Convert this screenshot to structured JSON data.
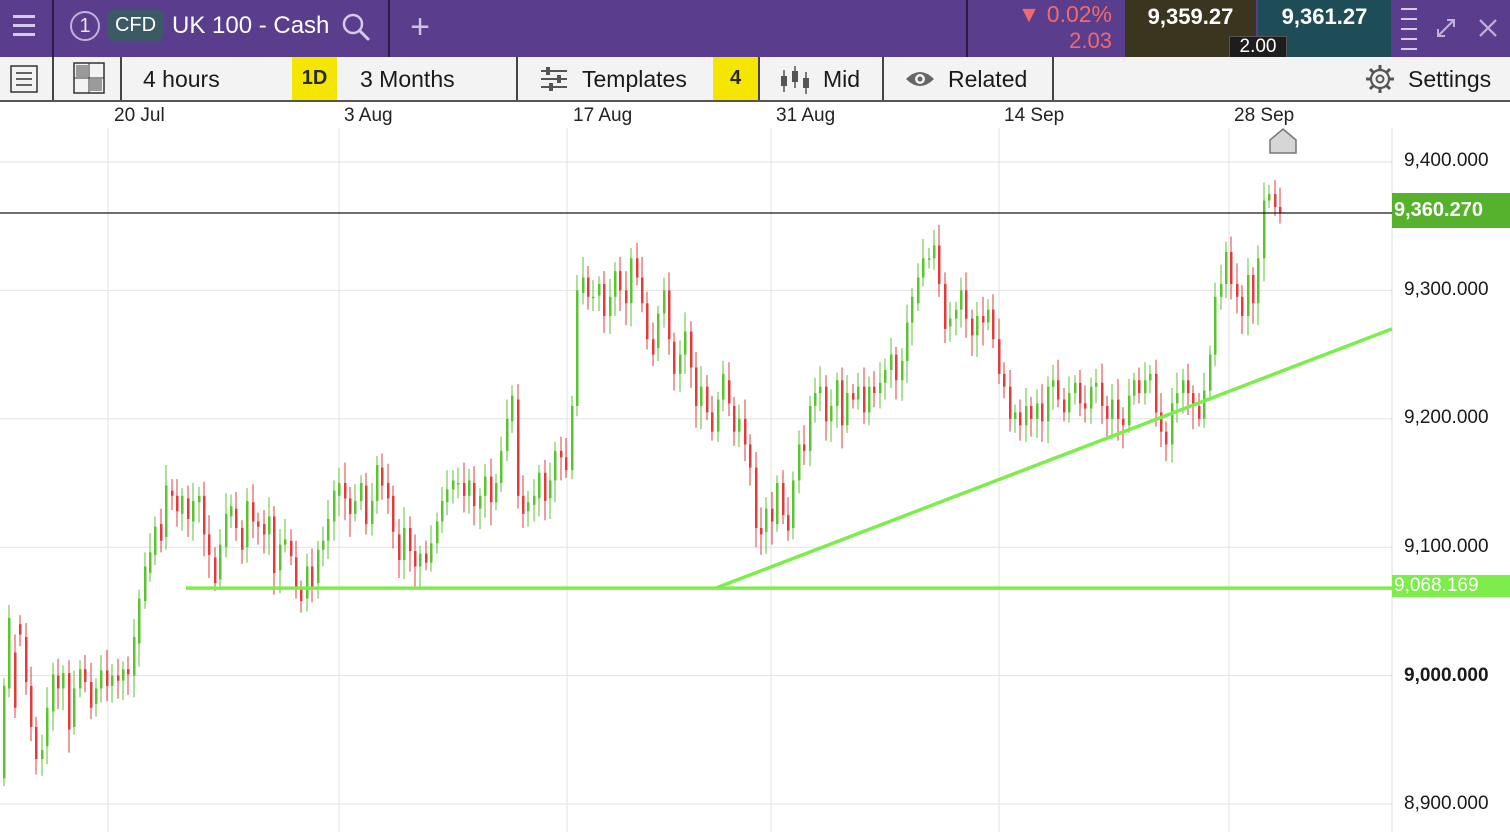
{
  "header": {
    "tab_number": "1",
    "cfd_badge": "CFD",
    "instrument": "UK 100 - Cash",
    "add_tab": "+",
    "change_arrow": "▼",
    "change_percent": "0.02%",
    "change_points": "2.03",
    "sell_price": "9,359.27",
    "buy_price": "9,361.27",
    "spread": "2.00"
  },
  "toolbar": {
    "interval": "4 hours",
    "period_badge": "1D",
    "range": "3 Months",
    "templates": "Templates",
    "templates_count": "4",
    "price_type": "Mid",
    "related": "Related",
    "settings": "Settings"
  },
  "colors": {
    "header_bg": "#5a3d8c",
    "up": "#5ac531",
    "down": "#e23b3b",
    "line": "#7ded4c",
    "price_tag": "#56b22d"
  },
  "chart_data": {
    "type": "candlestick",
    "x_ticks": [
      "20 Jul",
      "3 Aug",
      "17 Aug",
      "31 Aug",
      "14 Sep",
      "28 Sep"
    ],
    "y_ticks": [
      "9,400.000",
      "9,300.000",
      "9,200.000",
      "9,100.000",
      "9,000.000",
      "8,900.000"
    ],
    "ylim": [
      8880,
      9453
    ],
    "current_price": 9360.27,
    "current_price_label": "9,360.270",
    "support_level": 9068.169,
    "support_label": "9,068.169",
    "trendline_rising": [
      [
        9068.2,
        9270.0
      ]
    ],
    "candles": [
      [
        8920,
        8992
      ],
      [
        8990,
        9045
      ],
      [
        9018,
        8975
      ],
      [
        9040,
        9032
      ],
      [
        9030,
        8995
      ],
      [
        8992,
        8960
      ],
      [
        8960,
        8935
      ],
      [
        8935,
        8942
      ],
      [
        8945,
        8975
      ],
      [
        8972,
        9001
      ],
      [
        9000,
        8990
      ],
      [
        8990,
        9002
      ],
      [
        9002,
        8958
      ],
      [
        8960,
        8990
      ],
      [
        8990,
        9005
      ],
      [
        9005,
        8995
      ],
      [
        8995,
        8975
      ],
      [
        8978,
        8990
      ],
      [
        8990,
        9004
      ],
      [
        9004,
        8992
      ],
      [
        8992,
        9000
      ],
      [
        9000,
        8996
      ],
      [
        8996,
        9005
      ],
      [
        9005,
        9001
      ],
      [
        9000,
        9030
      ],
      [
        9025,
        9060
      ],
      [
        9058,
        9085
      ],
      [
        9080,
        9096
      ],
      [
        9094,
        9116
      ],
      [
        9118,
        9105
      ],
      [
        9108,
        9148
      ],
      [
        9144,
        9140
      ],
      [
        9140,
        9128
      ],
      [
        9126,
        9140
      ],
      [
        9138,
        9122
      ],
      [
        9120,
        9136
      ],
      [
        9135,
        9140
      ],
      [
        9140,
        9110
      ],
      [
        9110,
        9094
      ],
      [
        9092,
        9072
      ],
      [
        9075,
        9102
      ],
      [
        9100,
        9126
      ],
      [
        9124,
        9132
      ],
      [
        9130,
        9115
      ],
      [
        9115,
        9098
      ],
      [
        9100,
        9136
      ],
      [
        9135,
        9120
      ],
      [
        9120,
        9116
      ],
      [
        9118,
        9110
      ],
      [
        9110,
        9124
      ],
      [
        9124,
        9080
      ],
      [
        9082,
        9102
      ],
      [
        9102,
        9106
      ],
      [
        9105,
        9093
      ],
      [
        9092,
        9068
      ],
      [
        9068,
        9058
      ],
      [
        9060,
        9085
      ],
      [
        9085,
        9068
      ],
      [
        9072,
        9098
      ],
      [
        9098,
        9105
      ],
      [
        9105,
        9122
      ],
      [
        9120,
        9144
      ],
      [
        9140,
        9150
      ],
      [
        9150,
        9138
      ],
      [
        9138,
        9126
      ],
      [
        9126,
        9136
      ],
      [
        9136,
        9150
      ],
      [
        9148,
        9118
      ],
      [
        9118,
        9136
      ],
      [
        9136,
        9164
      ],
      [
        9162,
        9148
      ],
      [
        9150,
        9138
      ],
      [
        9140,
        9112
      ],
      [
        9110,
        9090
      ],
      [
        9090,
        9115
      ],
      [
        9115,
        9097
      ],
      [
        9097,
        9085
      ],
      [
        9085,
        9095
      ],
      [
        9095,
        9088
      ],
      [
        9088,
        9103
      ],
      [
        9103,
        9120
      ],
      [
        9120,
        9136
      ],
      [
        9135,
        9145
      ],
      [
        9145,
        9152
      ],
      [
        9150,
        9150
      ],
      [
        9150,
        9140
      ],
      [
        9140,
        9152
      ],
      [
        9150,
        9132
      ],
      [
        9130,
        9140
      ],
      [
        9140,
        9155
      ],
      [
        9155,
        9135
      ],
      [
        9135,
        9150
      ],
      [
        9150,
        9175
      ],
      [
        9175,
        9200
      ],
      [
        9198,
        9218
      ],
      [
        9215,
        9140
      ],
      [
        9140,
        9126
      ],
      [
        9128,
        9135
      ],
      [
        9133,
        9140
      ],
      [
        9138,
        9158
      ],
      [
        9158,
        9136
      ],
      [
        9138,
        9152
      ],
      [
        9152,
        9175
      ],
      [
        9175,
        9170
      ],
      [
        9170,
        9160
      ],
      [
        9160,
        9210
      ],
      [
        9210,
        9300
      ],
      [
        9298,
        9310
      ],
      [
        9310,
        9295
      ],
      [
        9295,
        9295
      ],
      [
        9296,
        9305
      ],
      [
        9305,
        9280
      ],
      [
        9280,
        9295
      ],
      [
        9295,
        9315
      ],
      [
        9315,
        9300
      ],
      [
        9300,
        9290
      ],
      [
        9290,
        9325
      ],
      [
        9325,
        9310
      ],
      [
        9310,
        9290
      ],
      [
        9290,
        9262
      ],
      [
        9262,
        9250
      ],
      [
        9255,
        9282
      ],
      [
        9282,
        9300
      ],
      [
        9300,
        9262
      ],
      [
        9260,
        9235
      ],
      [
        9235,
        9250
      ],
      [
        9250,
        9268
      ],
      [
        9268,
        9240
      ],
      [
        9240,
        9210
      ],
      [
        9210,
        9225
      ],
      [
        9225,
        9205
      ],
      [
        9205,
        9190
      ],
      [
        9190,
        9215
      ],
      [
        9215,
        9235
      ],
      [
        9230,
        9212
      ],
      [
        9210,
        9190
      ],
      [
        9190,
        9200
      ],
      [
        9200,
        9180
      ],
      [
        9180,
        9162
      ],
      [
        9162,
        9115
      ],
      [
        9115,
        9110
      ],
      [
        9112,
        9130
      ],
      [
        9130,
        9120
      ],
      [
        9118,
        9150
      ],
      [
        9150,
        9125
      ],
      [
        9125,
        9113
      ],
      [
        9115,
        9152
      ],
      [
        9152,
        9180
      ],
      [
        9180,
        9175
      ],
      [
        9175,
        9210
      ],
      [
        9210,
        9220
      ],
      [
        9220,
        9225
      ],
      [
        9225,
        9198
      ],
      [
        9198,
        9210
      ],
      [
        9210,
        9230
      ],
      [
        9230,
        9195
      ],
      [
        9195,
        9220
      ],
      [
        9220,
        9215
      ],
      [
        9215,
        9225
      ],
      [
        9225,
        9205
      ],
      [
        9205,
        9225
      ],
      [
        9225,
        9220
      ],
      [
        9220,
        9228
      ],
      [
        9228,
        9238
      ],
      [
        9238,
        9250
      ],
      [
        9250,
        9230
      ],
      [
        9230,
        9245
      ],
      [
        9245,
        9275
      ],
      [
        9275,
        9295
      ],
      [
        9290,
        9310
      ],
      [
        9310,
        9325
      ],
      [
        9325,
        9325
      ],
      [
        9325,
        9335
      ],
      [
        9335,
        9305
      ],
      [
        9305,
        9270
      ],
      [
        9272,
        9278
      ],
      [
        9278,
        9285
      ],
      [
        9285,
        9300
      ],
      [
        9300,
        9278
      ],
      [
        9278,
        9265
      ],
      [
        9265,
        9280
      ],
      [
        9280,
        9275
      ],
      [
        9275,
        9285
      ],
      [
        9285,
        9262
      ],
      [
        9262,
        9235
      ],
      [
        9235,
        9225
      ],
      [
        9225,
        9200
      ],
      [
        9200,
        9205
      ],
      [
        9205,
        9195
      ],
      [
        9195,
        9210
      ],
      [
        9210,
        9200
      ],
      [
        9200,
        9212
      ],
      [
        9212,
        9198
      ],
      [
        9198,
        9225
      ],
      [
        9225,
        9230
      ],
      [
        9230,
        9215
      ],
      [
        9215,
        9205
      ],
      [
        9205,
        9220
      ],
      [
        9220,
        9228
      ],
      [
        9228,
        9212
      ],
      [
        9212,
        9208
      ],
      [
        9208,
        9225
      ],
      [
        9225,
        9228
      ],
      [
        9228,
        9210
      ],
      [
        9210,
        9200
      ],
      [
        9200,
        9215
      ],
      [
        9215,
        9200
      ],
      [
        9200,
        9195
      ],
      [
        9195,
        9218
      ],
      [
        9218,
        9230
      ],
      [
        9230,
        9220
      ],
      [
        9220,
        9230
      ],
      [
        9230,
        9235
      ],
      [
        9235,
        9205
      ],
      [
        9205,
        9190
      ],
      [
        9190,
        9180
      ],
      [
        9180,
        9212
      ],
      [
        9212,
        9220
      ],
      [
        9220,
        9230
      ],
      [
        9230,
        9220
      ],
      [
        9220,
        9210
      ],
      [
        9210,
        9200
      ],
      [
        9200,
        9222
      ],
      [
        9222,
        9250
      ],
      [
        9250,
        9295
      ],
      [
        9295,
        9305
      ],
      [
        9305,
        9330
      ],
      [
        9330,
        9305
      ],
      [
        9305,
        9295
      ],
      [
        9295,
        9280
      ],
      [
        9280,
        9312
      ],
      [
        9312,
        9290
      ],
      [
        9290,
        9325
      ],
      [
        9325,
        9370
      ],
      [
        9370,
        9375
      ],
      [
        9375,
        9365
      ],
      [
        9365,
        9360
      ]
    ]
  }
}
